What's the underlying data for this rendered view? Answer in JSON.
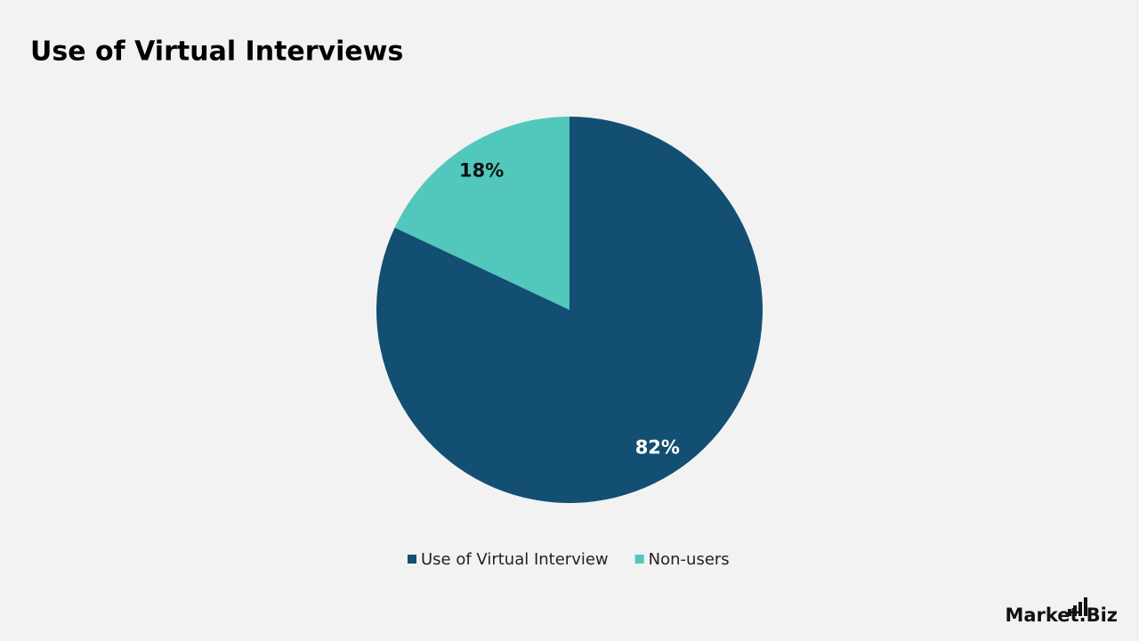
{
  "chart_data": {
    "type": "pie",
    "title": "Use of Virtual Interviews",
    "categories": [
      "Use of Virtual Interview",
      "Non-users"
    ],
    "values": [
      82,
      18
    ],
    "value_labels": [
      "82%",
      "18%"
    ],
    "colors": [
      "#134f72",
      "#52c7bb"
    ]
  },
  "logo": "Market.Biz"
}
